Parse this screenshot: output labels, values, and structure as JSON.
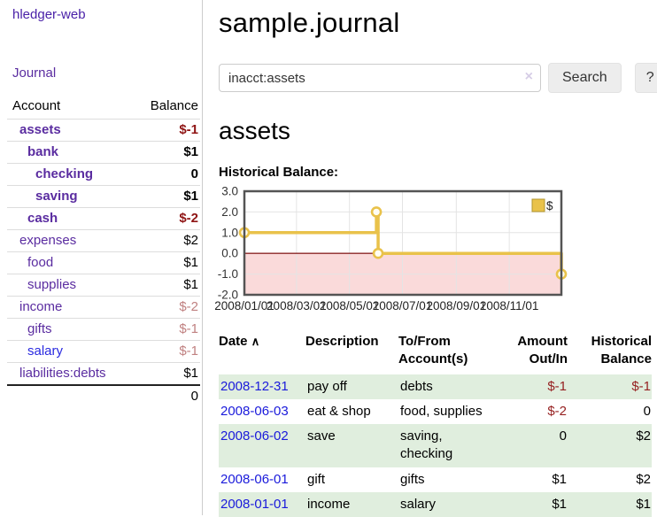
{
  "app": {
    "brand": "hledger-web",
    "nav_journal": "Journal"
  },
  "sidebar": {
    "accounts_table": {
      "headers": [
        "Account",
        "Balance"
      ],
      "rows": [
        {
          "name": "assets",
          "indent": 1,
          "bold": true,
          "balance": "$-1",
          "balance_style": "neg-strong"
        },
        {
          "name": "bank",
          "indent": 2,
          "bold": true,
          "balance": "$1",
          "balance_style": "pos-strong"
        },
        {
          "name": "checking",
          "indent": 3,
          "bold": true,
          "balance": "0",
          "balance_style": "pos-strong"
        },
        {
          "name": "saving",
          "indent": 3,
          "bold": true,
          "balance": "$1",
          "balance_style": "pos-strong"
        },
        {
          "name": "cash",
          "indent": 2,
          "bold": true,
          "balance": "$-2",
          "balance_style": "neg-strong"
        },
        {
          "name": "expenses",
          "indent": 1,
          "bold": false,
          "balance": "$2",
          "balance_style": "pos"
        },
        {
          "name": "food",
          "indent": 2,
          "bold": false,
          "balance": "$1",
          "balance_style": "pos"
        },
        {
          "name": "supplies",
          "indent": 2,
          "bold": false,
          "balance": "$1",
          "balance_style": "pos"
        },
        {
          "name": "income",
          "indent": 1,
          "bold": false,
          "balance": "$-2",
          "balance_style": "neg"
        },
        {
          "name": "gifts",
          "indent": 2,
          "bold": false,
          "balance": "$-1",
          "balance_style": "neg"
        },
        {
          "name": "salary",
          "indent": 2,
          "bold": false,
          "link_color": "blue",
          "balance": "$-1",
          "balance_style": "neg"
        },
        {
          "name": "liabilities:debts",
          "indent": 1,
          "bold": false,
          "balance": "$1",
          "balance_style": "pos"
        }
      ],
      "total": "0"
    }
  },
  "main": {
    "title": "sample.journal",
    "search": {
      "value": "inacct:assets",
      "clear_icon": "×",
      "button": "Search",
      "help_button": "?"
    },
    "account_heading": "assets",
    "chart_label": "Historical Balance:"
  },
  "chart_data": {
    "type": "line",
    "step": true,
    "title": "Historical Balance",
    "series": [
      {
        "name": "$",
        "color": "#e9c24a",
        "points": [
          [
            "2008-01-01",
            1
          ],
          [
            "2008-06-01",
            2
          ],
          [
            "2008-06-03",
            0
          ],
          [
            "2008-12-31",
            -1
          ]
        ]
      }
    ],
    "x_range": [
      "2008-01-01",
      "2008-12-31"
    ],
    "x_ticks": [
      "2008/01/01",
      "2008/03/01",
      "2008/05/01",
      "2008/07/01",
      "2008/09/01",
      "2008/11/01"
    ],
    "y_ticks": [
      "3.0",
      "2.0",
      "1.0",
      "0.0",
      "-1.0",
      "-2.0"
    ],
    "ylim": [
      -2,
      3
    ],
    "grid": true,
    "legend": {
      "label": "$",
      "position": "top-right"
    },
    "negative_region_fill": "#fadada",
    "zero_line_color": "#8b2525",
    "axis_color": "#545454"
  },
  "register": {
    "headers": {
      "date": "Date",
      "sort_icon": "∧",
      "description": "Description",
      "account": "To/From Account(s)",
      "amount": "Amount Out/In",
      "balance": "Historical Balance"
    },
    "rows": [
      {
        "date": "2008-12-31",
        "description": "pay off",
        "account": "debts",
        "amount": "$-1",
        "amount_neg": true,
        "balance": "$-1",
        "balance_neg": true
      },
      {
        "date": "2008-06-03",
        "description": "eat & shop",
        "account": "food, supplies",
        "amount": "$-2",
        "amount_neg": true,
        "balance": "0",
        "balance_neg": false
      },
      {
        "date": "2008-06-02",
        "description": "save",
        "account": "saving, checking",
        "amount": "0",
        "amount_neg": false,
        "balance": "$2",
        "balance_neg": false
      },
      {
        "date": "2008-06-01",
        "description": "gift",
        "account": "gifts",
        "amount": "$1",
        "amount_neg": false,
        "balance": "$2",
        "balance_neg": false
      },
      {
        "date": "2008-01-01",
        "description": "income",
        "account": "salary",
        "amount": "$1",
        "amount_neg": false,
        "balance": "$1",
        "balance_neg": false
      }
    ]
  }
}
